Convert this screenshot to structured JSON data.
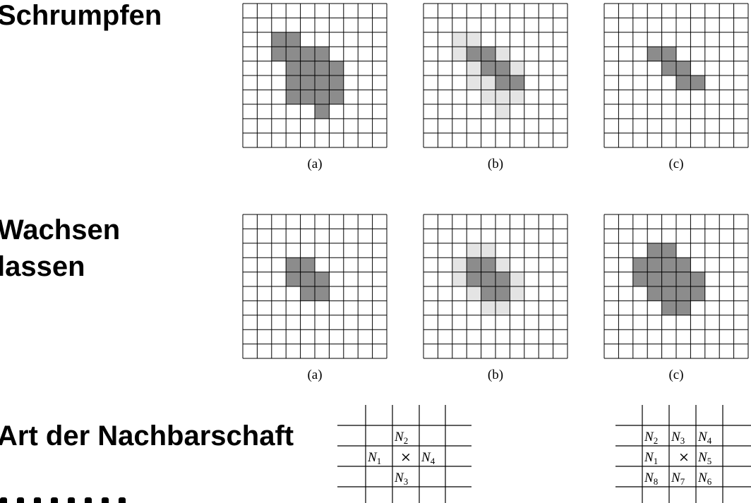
{
  "headings": {
    "schrumpfen": "Schrumpfen",
    "wachsen_line1": "Wachsen",
    "wachsen_line2": "lassen",
    "nachbarschaft": "Art der Nachbarschaft"
  },
  "colors": {
    "dark_cell": "#8c8c8c",
    "light_cell": "#e4e4e4",
    "grid_line": "#000000"
  },
  "grid_size": {
    "rows": 10,
    "cols": 10
  },
  "rows": [
    {
      "name": "schrumpfen",
      "grids": [
        {
          "caption": "(a)",
          "dark": [
            [
              2,
              2
            ],
            [
              2,
              3
            ],
            [
              3,
              2
            ],
            [
              3,
              3
            ],
            [
              3,
              4
            ],
            [
              3,
              5
            ],
            [
              4,
              3
            ],
            [
              4,
              4
            ],
            [
              4,
              5
            ],
            [
              4,
              6
            ],
            [
              5,
              3
            ],
            [
              5,
              4
            ],
            [
              5,
              5
            ],
            [
              5,
              6
            ],
            [
              6,
              3
            ],
            [
              6,
              4
            ],
            [
              6,
              5
            ],
            [
              6,
              6
            ],
            [
              7,
              5
            ]
          ],
          "light": []
        },
        {
          "caption": "(b)",
          "dark": [
            [
              3,
              3
            ],
            [
              3,
              4
            ],
            [
              4,
              4
            ],
            [
              4,
              5
            ],
            [
              5,
              5
            ],
            [
              5,
              6
            ]
          ],
          "light": [
            [
              2,
              2
            ],
            [
              2,
              3
            ],
            [
              3,
              2
            ],
            [
              3,
              5
            ],
            [
              4,
              3
            ],
            [
              4,
              6
            ],
            [
              5,
              3
            ],
            [
              5,
              4
            ],
            [
              6,
              4
            ],
            [
              6,
              5
            ],
            [
              6,
              6
            ],
            [
              7,
              5
            ]
          ]
        },
        {
          "caption": "(c)",
          "dark": [
            [
              3,
              3
            ],
            [
              3,
              4
            ],
            [
              4,
              4
            ],
            [
              4,
              5
            ],
            [
              5,
              5
            ],
            [
              5,
              6
            ]
          ],
          "light": []
        }
      ]
    },
    {
      "name": "wachsen",
      "grids": [
        {
          "caption": "(a)",
          "dark": [
            [
              3,
              3
            ],
            [
              3,
              4
            ],
            [
              4,
              3
            ],
            [
              4,
              4
            ],
            [
              4,
              5
            ],
            [
              5,
              4
            ],
            [
              5,
              5
            ]
          ],
          "light": []
        },
        {
          "caption": "(b)",
          "dark": [
            [
              3,
              3
            ],
            [
              3,
              4
            ],
            [
              4,
              3
            ],
            [
              4,
              4
            ],
            [
              4,
              5
            ],
            [
              5,
              4
            ],
            [
              5,
              5
            ]
          ],
          "light": [
            [
              2,
              3
            ],
            [
              2,
              4
            ],
            [
              3,
              2
            ],
            [
              3,
              5
            ],
            [
              4,
              2
            ],
            [
              4,
              6
            ],
            [
              5,
              3
            ],
            [
              5,
              6
            ],
            [
              6,
              4
            ],
            [
              6,
              5
            ]
          ]
        },
        {
          "caption": "(c)",
          "dark": [
            [
              2,
              3
            ],
            [
              2,
              4
            ],
            [
              3,
              2
            ],
            [
              3,
              3
            ],
            [
              3,
              4
            ],
            [
              3,
              5
            ],
            [
              4,
              2
            ],
            [
              4,
              3
            ],
            [
              4,
              4
            ],
            [
              4,
              5
            ],
            [
              4,
              6
            ],
            [
              5,
              3
            ],
            [
              5,
              4
            ],
            [
              5,
              5
            ],
            [
              5,
              6
            ],
            [
              6,
              4
            ],
            [
              6,
              5
            ]
          ],
          "light": []
        }
      ]
    }
  ],
  "neighborhood4": {
    "top": {
      "label": "N",
      "sub": "2"
    },
    "left": {
      "label": "N",
      "sub": "1"
    },
    "center": "×",
    "right": {
      "label": "N",
      "sub": "4"
    },
    "bottom": {
      "label": "N",
      "sub": "3"
    }
  },
  "neighborhood8": {
    "cells": [
      [
        {
          "label": "N",
          "sub": "2"
        },
        {
          "label": "N",
          "sub": "3"
        },
        {
          "label": "N",
          "sub": "4"
        }
      ],
      [
        {
          "label": "N",
          "sub": "1"
        },
        {
          "label": "×",
          "sub": ""
        },
        {
          "label": "N",
          "sub": "5"
        }
      ],
      [
        {
          "label": "N",
          "sub": "8"
        },
        {
          "label": "N",
          "sub": "7"
        },
        {
          "label": "N",
          "sub": "6"
        }
      ]
    ]
  }
}
